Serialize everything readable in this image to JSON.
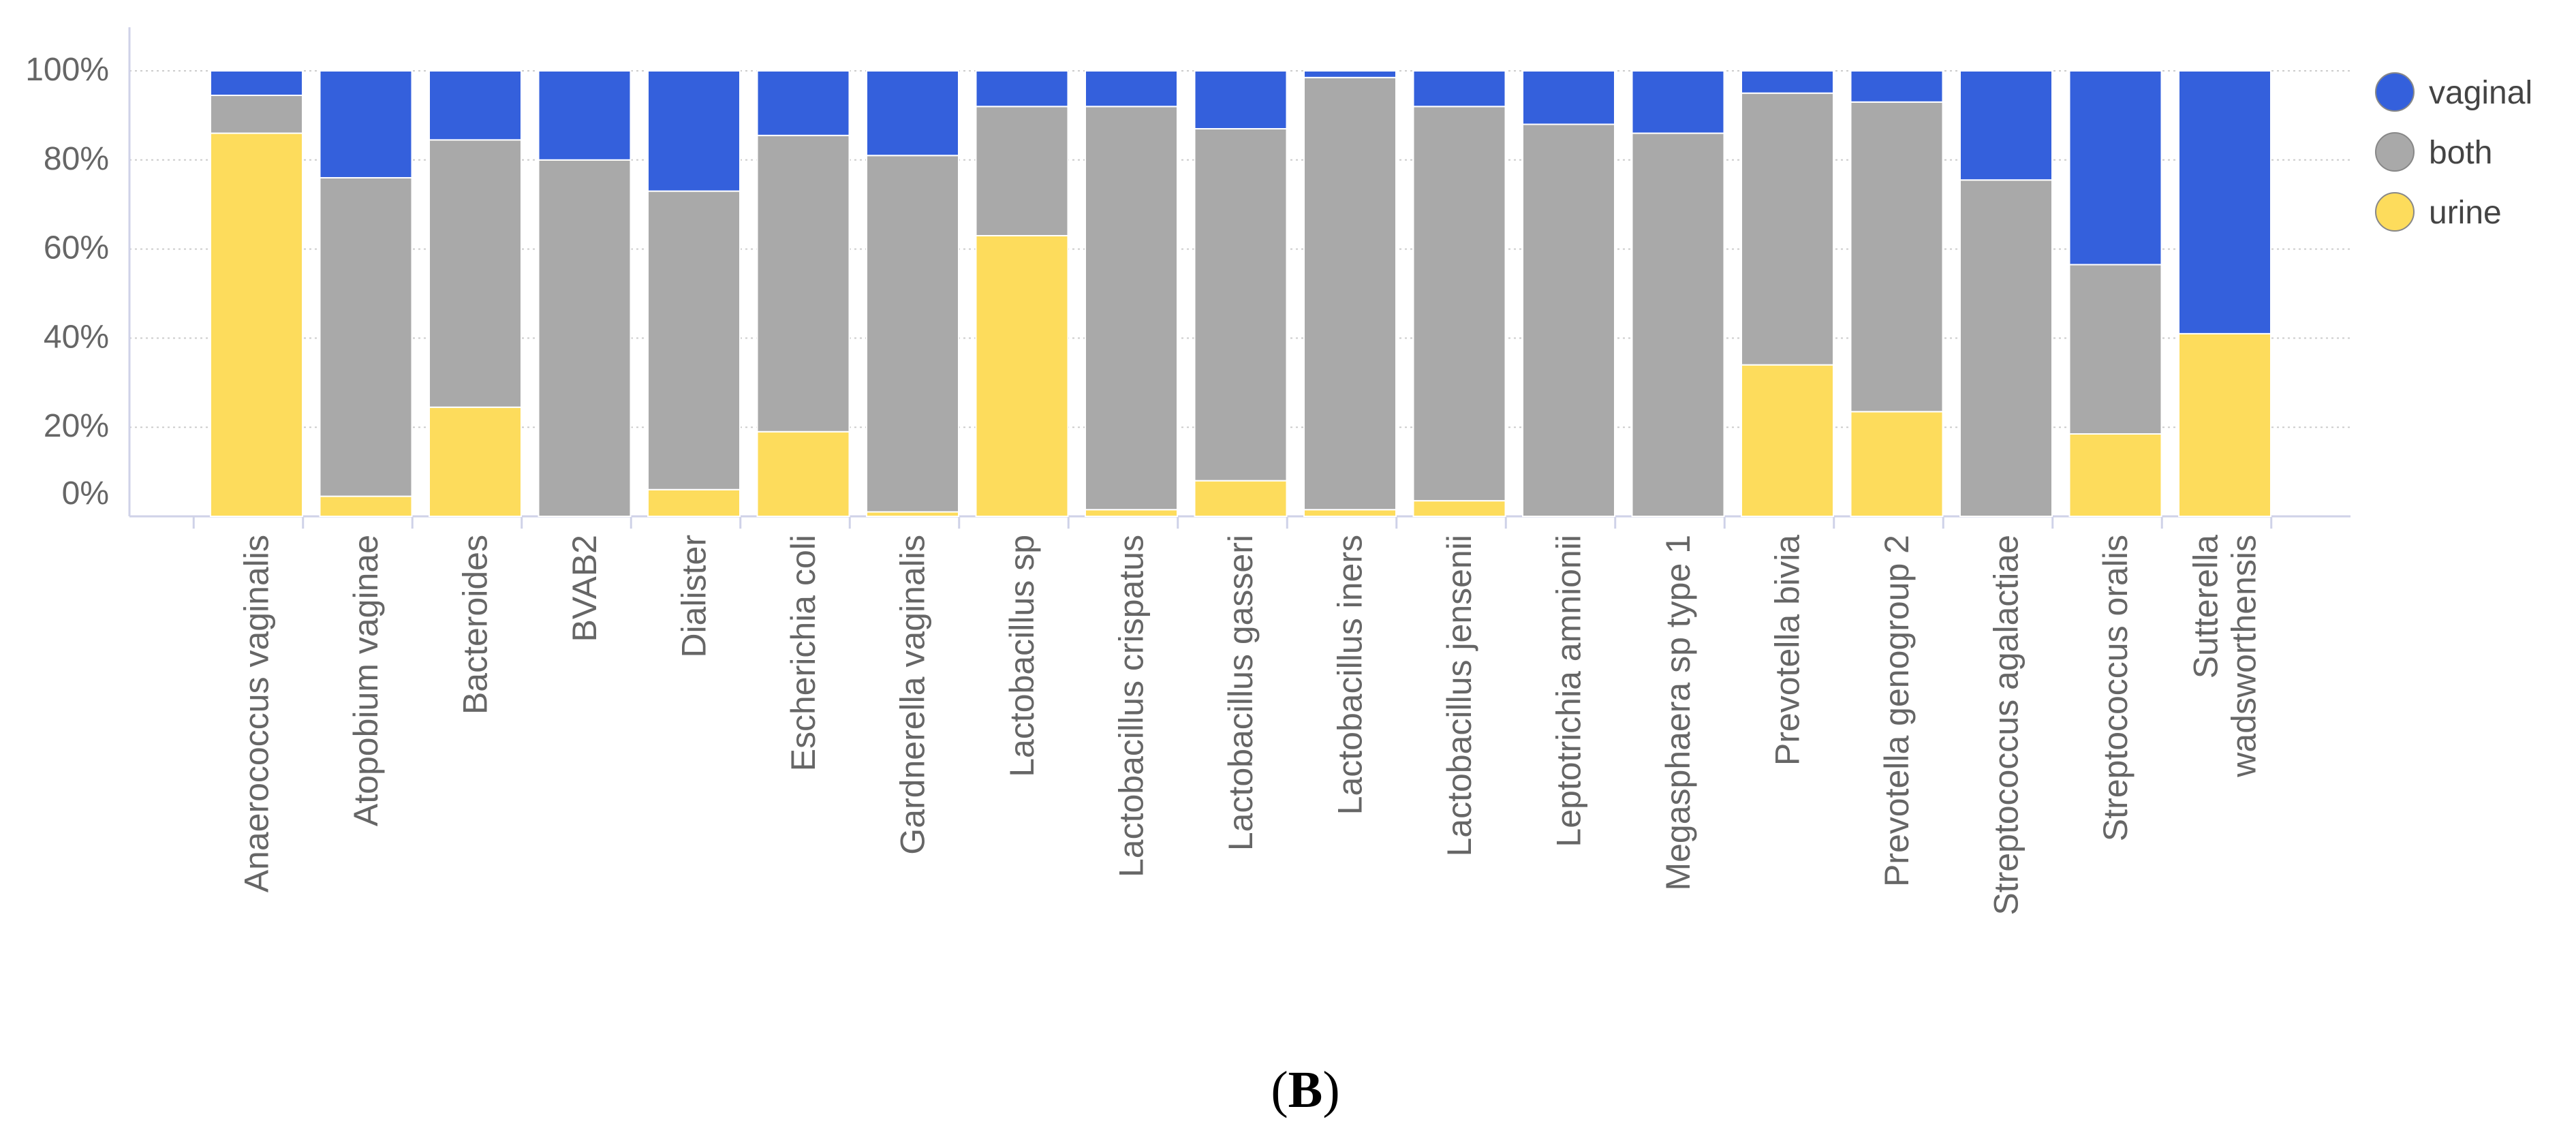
{
  "chart_data": {
    "type": "bar",
    "stacked": true,
    "normalized": true,
    "title": "",
    "xlabel": "",
    "ylabel": "",
    "ylim": [
      0,
      100
    ],
    "y_ticks": [
      "0%",
      "20%",
      "40%",
      "60%",
      "80%",
      "100%"
    ],
    "grid": true,
    "legend_position": "top-right",
    "categories": [
      "Anaerococcus vaginalis",
      "Atopobium vaginae",
      "Bacteroides",
      "BVAB2",
      "Dialister",
      "Escherichia coli",
      "Gardnerella vaginalis",
      "Lactobacillus sp",
      "Lactobacillus crispatus",
      "Lactobacillus gasseri",
      "Lactobacillus iners",
      "Lactobacillus jensenii",
      "Leptotrichia amnionii",
      "Megasphaera sp type 1",
      "Prevotella bivia",
      "Prevotella genogroup 2",
      "Streptococcus agalactiae",
      "Streptococcus oralis",
      "Sutterella wadsworthensis"
    ],
    "category_lines": [
      [
        "Anaerococcus vaginalis"
      ],
      [
        "Atopobium vaginae"
      ],
      [
        "Bacteroides"
      ],
      [
        "BVAB2"
      ],
      [
        "Dialister"
      ],
      [
        "Escherichia coli"
      ],
      [
        "Gardnerella vaginalis"
      ],
      [
        "Lactobacillus sp"
      ],
      [
        "Lactobacillus crispatus"
      ],
      [
        "Lactobacillus gasseri"
      ],
      [
        "Lactobacillus iners"
      ],
      [
        "Lactobacillus jensenii"
      ],
      [
        "Leptotrichia amnionii"
      ],
      [
        "Megasphaera sp type 1"
      ],
      [
        "Prevotella bivia"
      ],
      [
        "Prevotella genogroup 2"
      ],
      [
        "Streptococcus agalactiae"
      ],
      [
        "Streptococcus oralis"
      ],
      [
        "Sutterella",
        "wadsworthensis"
      ]
    ],
    "series": [
      {
        "name": "urine",
        "color": "#FDDC5C",
        "values": [
          86,
          4.5,
          24.5,
          0,
          6,
          19,
          1,
          63,
          1.5,
          8,
          1.5,
          3.5,
          0,
          0,
          34,
          23.5,
          0,
          18.5,
          41
        ]
      },
      {
        "name": "both",
        "color": "#A9A9A9",
        "values": [
          8.5,
          71.5,
          60,
          80,
          67,
          66.5,
          80,
          29,
          90.5,
          79,
          97,
          88.5,
          88,
          86,
          61,
          69.5,
          75.5,
          38,
          0
        ]
      },
      {
        "name": "vaginal",
        "color": "#3460DC",
        "values": [
          5.5,
          24,
          15.5,
          20,
          27,
          14.5,
          19,
          8,
          8,
          13,
          1.5,
          8,
          12,
          14,
          5,
          7,
          24.5,
          43.5,
          59
        ]
      }
    ],
    "legend": [
      "vaginal",
      "both",
      "urine"
    ]
  },
  "caption": {
    "open": "(",
    "letter": "B",
    "close": ")"
  }
}
